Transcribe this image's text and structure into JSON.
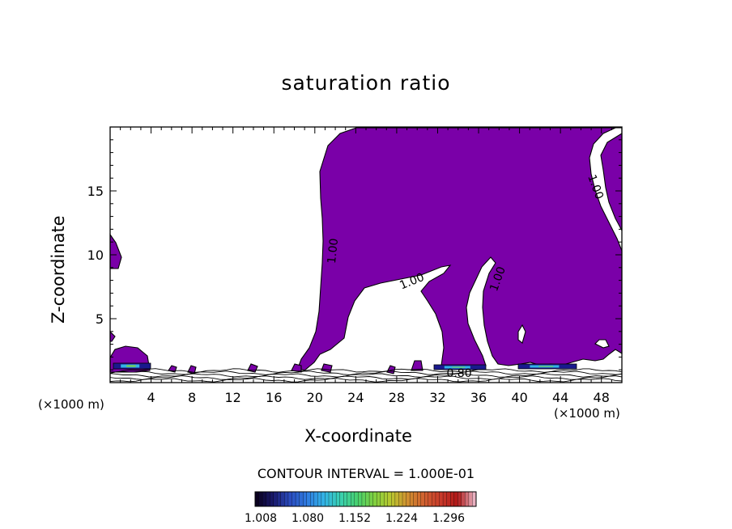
{
  "chart_data": {
    "type": "contour",
    "title": "saturation ratio",
    "xlabel": "X-coordinate",
    "ylabel": "Z-coordinate",
    "x_unit_label_left": "(×1000 m)",
    "x_unit_label_right": "(×1000 m)",
    "xlim": [
      0,
      50
    ],
    "ylim": [
      0,
      20
    ],
    "x_ticks": [
      4,
      8,
      12,
      16,
      20,
      24,
      28,
      32,
      36,
      40,
      44,
      48
    ],
    "y_ticks": [
      5,
      10,
      15
    ],
    "contour_interval_label": "CONTOUR INTERVAL = 1.000E-01",
    "contour_labels": [
      {
        "text": "1.00",
        "x": 21.8,
        "y": 10.3,
        "angle": -84
      },
      {
        "text": "1.00",
        "x": 29.5,
        "y": 7.9,
        "angle": -22
      },
      {
        "text": "1.00",
        "x": 37.9,
        "y": 8.1,
        "angle": -70
      },
      {
        "text": "1.00",
        "x": 47.4,
        "y": 15.3,
        "angle": 70
      },
      {
        "text": "0.80",
        "x": 34.1,
        "y": 0.7,
        "angle": 0
      }
    ],
    "colorbar": {
      "ticks": [
        "1.008",
        "1.080",
        "1.152",
        "1.224",
        "1.296"
      ],
      "colors": [
        "#0a0020",
        "#1a1a6e",
        "#2a4dbf",
        "#2f7be0",
        "#33b3e6",
        "#3ad0b0",
        "#48d070",
        "#7fd040",
        "#b8c830",
        "#d09030",
        "#d06030",
        "#c83a2a",
        "#b01818",
        "#e8b0c0"
      ]
    },
    "fill_color": "#7a00a8"
  }
}
